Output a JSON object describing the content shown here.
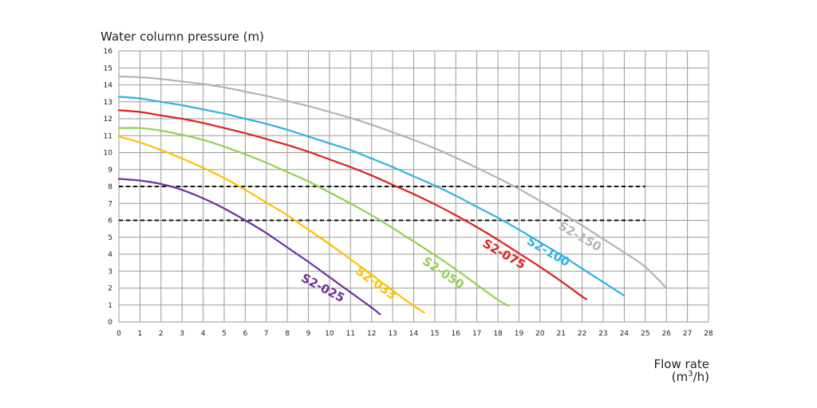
{
  "chart_data": {
    "type": "line",
    "ylabel": "Water column pressure (m)",
    "xlabel_line1": "Flow rate",
    "xlabel_line2_prefix": "(m",
    "xlabel_line2_sup": "3",
    "xlabel_line2_suffix": "/h)",
    "xlim": [
      0,
      28
    ],
    "ylim": [
      0,
      16
    ],
    "x_ticks": [
      "0",
      "1",
      "2",
      "3",
      "4",
      "5",
      "6",
      "7",
      "8",
      "9",
      "10",
      "11",
      "12",
      "13",
      "14",
      "15",
      "16",
      "17",
      "18",
      "19",
      "20",
      "21",
      "22",
      "23",
      "24",
      "25",
      "26",
      "27",
      "28"
    ],
    "y_ticks": [
      "0",
      "1",
      "2",
      "3",
      "4",
      "5",
      "6",
      "7",
      "8",
      "9",
      "10",
      "11",
      "12",
      "13",
      "14",
      "15",
      "16"
    ],
    "grid": true,
    "reference_lines": [
      {
        "y": 8,
        "x_start": 0,
        "x_end": 25,
        "style": "dashed",
        "color": "#111111"
      },
      {
        "y": 6,
        "x_start": 0,
        "x_end": 25,
        "style": "dashed",
        "color": "#111111"
      }
    ],
    "series": [
      {
        "name": "S2-025",
        "color": "#7030a0",
        "label_angle": 28,
        "label_at": [
          9.6,
          1.8
        ],
        "points": [
          [
            0,
            8.45
          ],
          [
            1,
            8.35
          ],
          [
            2,
            8.15
          ],
          [
            3,
            7.8
          ],
          [
            4,
            7.3
          ],
          [
            5,
            6.7
          ],
          [
            6,
            6.0
          ],
          [
            7,
            5.25
          ],
          [
            8,
            4.4
          ],
          [
            9,
            3.55
          ],
          [
            10,
            2.65
          ],
          [
            11,
            1.75
          ],
          [
            12,
            0.85
          ],
          [
            12.4,
            0.45
          ]
        ]
      },
      {
        "name": "S2-033",
        "color": "#ffc000",
        "label_angle": 36,
        "label_at": [
          12.1,
          2.1
        ],
        "points": [
          [
            0,
            10.95
          ],
          [
            1,
            10.6
          ],
          [
            2,
            10.15
          ],
          [
            3,
            9.65
          ],
          [
            4,
            9.1
          ],
          [
            5,
            8.5
          ],
          [
            6,
            7.8
          ],
          [
            7,
            7.05
          ],
          [
            8,
            6.3
          ],
          [
            9,
            5.45
          ],
          [
            10,
            4.6
          ],
          [
            11,
            3.7
          ],
          [
            12,
            2.8
          ],
          [
            13,
            1.85
          ],
          [
            14,
            0.95
          ],
          [
            14.5,
            0.55
          ]
        ]
      },
      {
        "name": "S2-050",
        "color": "#92d050",
        "label_angle": 34,
        "label_at": [
          15.3,
          2.7
        ],
        "points": [
          [
            0,
            11.45
          ],
          [
            1,
            11.45
          ],
          [
            2,
            11.3
          ],
          [
            3,
            11.05
          ],
          [
            4,
            10.75
          ],
          [
            5,
            10.35
          ],
          [
            6,
            9.9
          ],
          [
            7,
            9.4
          ],
          [
            8,
            8.85
          ],
          [
            9,
            8.3
          ],
          [
            10,
            7.65
          ],
          [
            11,
            7.0
          ],
          [
            12,
            6.3
          ],
          [
            13,
            5.55
          ],
          [
            14,
            4.75
          ],
          [
            15,
            3.95
          ],
          [
            16,
            3.1
          ],
          [
            17,
            2.2
          ],
          [
            18,
            1.3
          ],
          [
            18.5,
            0.95
          ]
        ]
      },
      {
        "name": "S2-075",
        "color": "#e02020",
        "label_angle": 30,
        "label_at": [
          18.2,
          3.8
        ],
        "points": [
          [
            0,
            12.5
          ],
          [
            1,
            12.4
          ],
          [
            2,
            12.2
          ],
          [
            3,
            12.0
          ],
          [
            4,
            11.75
          ],
          [
            5,
            11.45
          ],
          [
            6,
            11.15
          ],
          [
            7,
            10.8
          ],
          [
            8,
            10.45
          ],
          [
            9,
            10.05
          ],
          [
            10,
            9.6
          ],
          [
            11,
            9.15
          ],
          [
            12,
            8.65
          ],
          [
            13,
            8.1
          ],
          [
            14,
            7.55
          ],
          [
            15,
            6.95
          ],
          [
            16,
            6.3
          ],
          [
            17,
            5.6
          ],
          [
            18,
            4.85
          ],
          [
            19,
            4.05
          ],
          [
            20,
            3.25
          ],
          [
            21,
            2.4
          ],
          [
            22,
            1.5
          ],
          [
            22.2,
            1.35
          ]
        ]
      },
      {
        "name": "S2-100",
        "color": "#2fb1e3",
        "label_angle": 30,
        "label_at": [
          20.3,
          3.95
        ],
        "points": [
          [
            0,
            13.3
          ],
          [
            1,
            13.2
          ],
          [
            2,
            13.0
          ],
          [
            3,
            12.8
          ],
          [
            4,
            12.55
          ],
          [
            5,
            12.3
          ],
          [
            6,
            12.0
          ],
          [
            7,
            11.7
          ],
          [
            8,
            11.35
          ],
          [
            9,
            10.95
          ],
          [
            10,
            10.55
          ],
          [
            11,
            10.15
          ],
          [
            12,
            9.65
          ],
          [
            13,
            9.15
          ],
          [
            14,
            8.6
          ],
          [
            15,
            8.05
          ],
          [
            16,
            7.45
          ],
          [
            17,
            6.8
          ],
          [
            18,
            6.15
          ],
          [
            19,
            5.45
          ],
          [
            20,
            4.7
          ],
          [
            21,
            3.95
          ],
          [
            22,
            3.15
          ],
          [
            23,
            2.35
          ],
          [
            24,
            1.55
          ]
        ]
      },
      {
        "name": "S2-150",
        "color": "#b4b4b4",
        "label_angle": 30,
        "label_at": [
          21.8,
          4.85
        ],
        "points": [
          [
            0,
            14.5
          ],
          [
            1,
            14.45
          ],
          [
            2,
            14.35
          ],
          [
            3,
            14.2
          ],
          [
            4,
            14.05
          ],
          [
            5,
            13.85
          ],
          [
            6,
            13.6
          ],
          [
            7,
            13.35
          ],
          [
            8,
            13.05
          ],
          [
            9,
            12.75
          ],
          [
            10,
            12.4
          ],
          [
            11,
            12.05
          ],
          [
            12,
            11.65
          ],
          [
            13,
            11.2
          ],
          [
            14,
            10.75
          ],
          [
            15,
            10.25
          ],
          [
            16,
            9.7
          ],
          [
            17,
            9.1
          ],
          [
            18,
            8.5
          ],
          [
            19,
            7.85
          ],
          [
            20,
            7.15
          ],
          [
            21,
            6.45
          ],
          [
            22,
            5.7
          ],
          [
            23,
            4.9
          ],
          [
            24,
            4.1
          ],
          [
            25,
            3.25
          ],
          [
            26,
            2.0
          ]
        ]
      }
    ]
  }
}
